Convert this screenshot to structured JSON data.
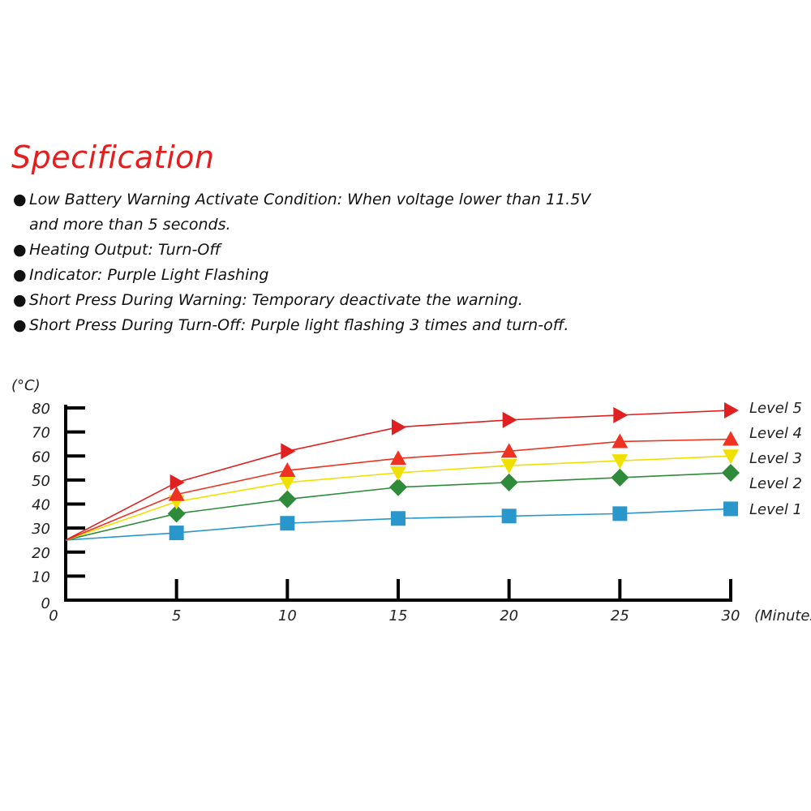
{
  "spec": {
    "title": "Specification",
    "items": [
      {
        "lines": [
          "Low Battery Warning Activate Condition: When voltage lower than 11.5V",
          "and more than 5 seconds."
        ]
      },
      {
        "lines": [
          "Heating Output: Turn-Off"
        ]
      },
      {
        "lines": [
          "Indicator: Purple Light Flashing"
        ]
      },
      {
        "lines": [
          "Short Press During Warning: Temporary deactivate the warning."
        ]
      },
      {
        "lines": [
          "Short Press During Turn-Off: Purple light flashing 3 times and turn-off."
        ]
      }
    ]
  },
  "chart_data": {
    "type": "line",
    "xlabel": "(Minutes)",
    "ylabel": "(°C)",
    "x": [
      0,
      5,
      10,
      15,
      20,
      25,
      30
    ],
    "xticks": [
      "0",
      "5",
      "10",
      "15",
      "20",
      "25",
      "30"
    ],
    "yticks": [
      "0",
      "10",
      "20",
      "30",
      "40",
      "50",
      "60",
      "70",
      "80"
    ],
    "xlim": [
      0,
      30
    ],
    "ylim": [
      0,
      80
    ],
    "grid": false,
    "legend": "right, labels at line ends",
    "series": [
      {
        "name": "Level 5",
        "color": "#e02020",
        "marker": "triangle-right",
        "values": [
          25,
          49,
          62,
          72,
          75,
          77,
          79
        ]
      },
      {
        "name": "Level 4",
        "color": "#ee3322",
        "marker": "triangle-up",
        "values": [
          25,
          44,
          54,
          59,
          62,
          66,
          67
        ]
      },
      {
        "name": "Level 3",
        "color": "#f0e000",
        "marker": "triangle-down",
        "values": [
          25,
          41,
          49,
          53,
          56,
          58,
          60
        ]
      },
      {
        "name": "Level 2",
        "color": "#2e8b3a",
        "marker": "diamond",
        "values": [
          25,
          36,
          42,
          47,
          49,
          51,
          53
        ]
      },
      {
        "name": "Level 1",
        "color": "#2a97cc",
        "marker": "square",
        "values": [
          25,
          28,
          32,
          34,
          35,
          36,
          38
        ]
      }
    ]
  }
}
